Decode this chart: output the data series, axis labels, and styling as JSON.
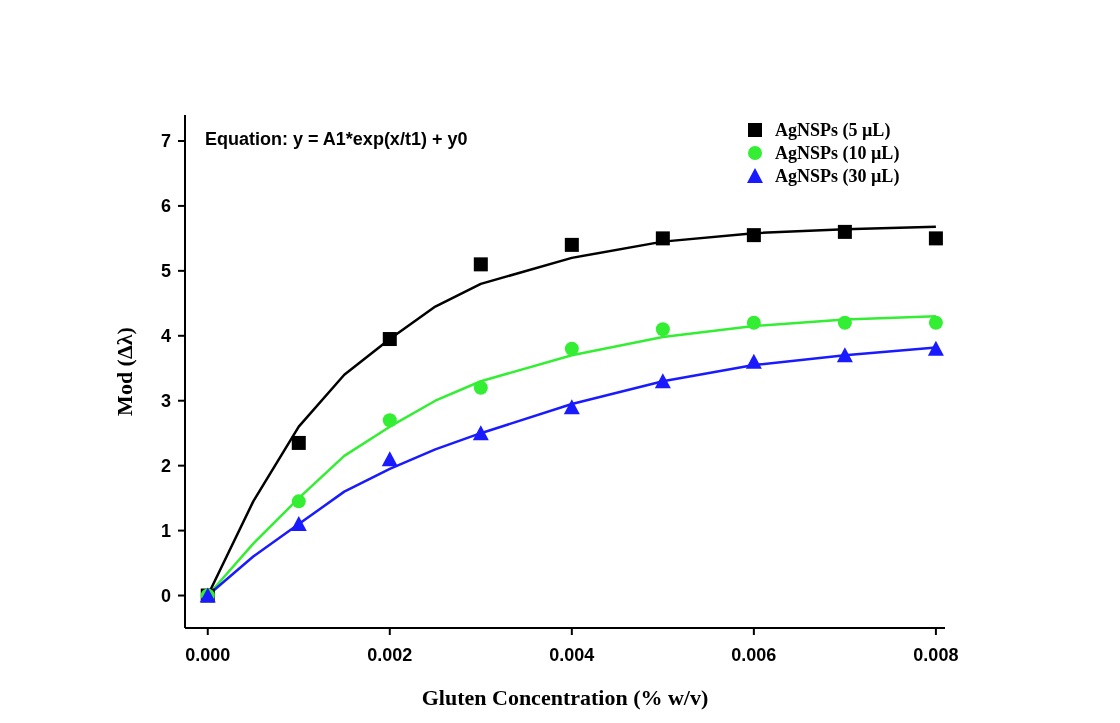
{
  "chart_data": {
    "type": "scatter",
    "xlabel": "Gluten Concentration (% w/v)",
    "ylabel": "Mod (Δλ)",
    "annotations": [
      "Equation: y = A1*exp(x/t1) + y0"
    ],
    "x": [
      0,
      0.001,
      0.002,
      0.003,
      0.004,
      0.005,
      0.006,
      0.007,
      0.008
    ],
    "series": [
      {
        "name": "AgNSPs (5 µL)",
        "color": "#000000",
        "marker": "square",
        "values": [
          0,
          2.35,
          3.95,
          5.1,
          5.4,
          5.5,
          5.55,
          5.6,
          5.5
        ]
      },
      {
        "name": "AgNSPs (10 µL)",
        "color": "#33ee33",
        "marker": "circle",
        "values": [
          0,
          1.45,
          2.7,
          3.2,
          3.8,
          4.1,
          4.2,
          4.2,
          4.2
        ]
      },
      {
        "name": "AgNSPs (30 µL)",
        "color": "#1a1aff",
        "marker": "triangle",
        "values": [
          0,
          1.1,
          2.1,
          2.5,
          2.9,
          3.3,
          3.6,
          3.7,
          3.8
        ]
      },
      {
        "type": "line",
        "color": "#000000",
        "x": [
          0,
          0.0005,
          0.001,
          0.0015,
          0.002,
          0.0025,
          0.003,
          0.004,
          0.005,
          0.006,
          0.007,
          0.008
        ],
        "values": [
          0,
          1.45,
          2.6,
          3.4,
          3.95,
          4.45,
          4.8,
          5.2,
          5.45,
          5.58,
          5.64,
          5.68
        ]
      },
      {
        "type": "line",
        "color": "#33ee33",
        "x": [
          0,
          0.0005,
          0.001,
          0.0015,
          0.002,
          0.0025,
          0.003,
          0.004,
          0.005,
          0.006,
          0.007,
          0.008
        ],
        "values": [
          0,
          0.8,
          1.5,
          2.15,
          2.6,
          3.0,
          3.3,
          3.7,
          3.98,
          4.15,
          4.25,
          4.3
        ]
      },
      {
        "type": "line",
        "color": "#1a1aff",
        "x": [
          0,
          0.0005,
          0.001,
          0.0015,
          0.002,
          0.0025,
          0.003,
          0.004,
          0.005,
          0.006,
          0.007,
          0.008
        ],
        "values": [
          0,
          0.6,
          1.1,
          1.6,
          1.95,
          2.25,
          2.5,
          2.95,
          3.3,
          3.55,
          3.7,
          3.82
        ]
      }
    ],
    "xlim": [
      -0.00025,
      0.0081
    ],
    "ylim": [
      -0.5,
      7.4
    ],
    "xticks": [
      {
        "value": 0,
        "label": "0.000"
      },
      {
        "value": 0.002,
        "label": "0.002"
      },
      {
        "value": 0.004,
        "label": "0.004"
      },
      {
        "value": 0.006,
        "label": "0.006"
      },
      {
        "value": 0.008,
        "label": "0.008"
      }
    ],
    "yticks": [
      0,
      1,
      2,
      3,
      4,
      5,
      6,
      7
    ],
    "legend": "top right",
    "grid": false
  }
}
